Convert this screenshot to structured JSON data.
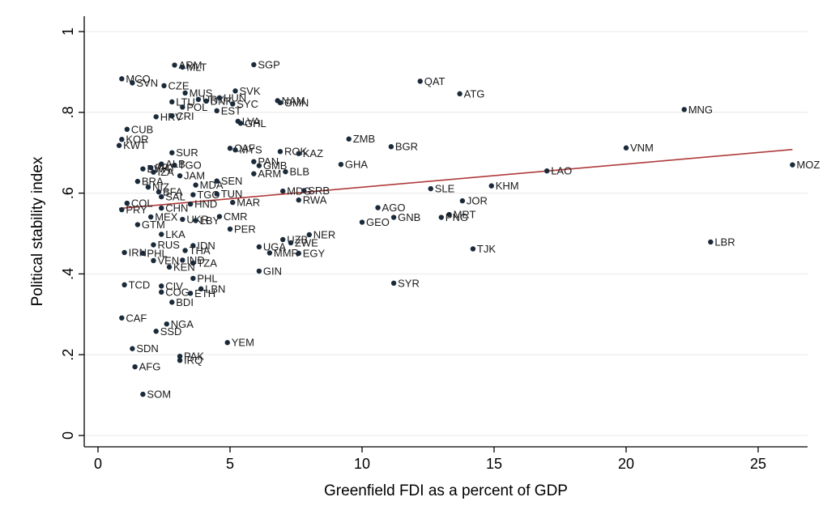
{
  "chart_data": {
    "type": "scatter",
    "xlabel": "Greenfield FDI as a percent of GDP",
    "ylabel": "Political stability index",
    "xlim": [
      0,
      26.5
    ],
    "ylim": [
      0,
      1
    ],
    "xticks": [
      0,
      5,
      10,
      15,
      20,
      25
    ],
    "yticks": [
      0,
      0.2,
      0.4,
      0.6,
      0.8,
      1
    ],
    "ytick_labels": [
      "0",
      ".2",
      ".4",
      ".6",
      ".8",
      "1"
    ],
    "grid": true,
    "legend": "none",
    "colors": {
      "point": "#1a2a3a",
      "fit_line": "#b03a3a",
      "grid": "#e8e8e8",
      "axis": "#000000"
    },
    "fit_line": {
      "x": [
        0.8,
        26.3
      ],
      "y": [
        0.562,
        0.708
      ]
    },
    "points": [
      {
        "label": "ARM",
        "x": 2.9,
        "y": 0.917
      },
      {
        "label": "MLT",
        "x": 3.2,
        "y": 0.912
      },
      {
        "label": "SGP",
        "x": 5.9,
        "y": 0.918
      },
      {
        "label": "MCO",
        "x": 0.9,
        "y": 0.883
      },
      {
        "label": "SVN",
        "x": 1.3,
        "y": 0.873
      },
      {
        "label": "CZE",
        "x": 2.5,
        "y": 0.866
      },
      {
        "label": "QAT",
        "x": 12.2,
        "y": 0.877
      },
      {
        "label": "ATG",
        "x": 13.7,
        "y": 0.846
      },
      {
        "label": "MUS",
        "x": 3.3,
        "y": 0.848
      },
      {
        "label": "SVK",
        "x": 5.2,
        "y": 0.853
      },
      {
        "label": "LTU",
        "x": 2.8,
        "y": 0.826
      },
      {
        "label": "URY",
        "x": 3.8,
        "y": 0.832
      },
      {
        "label": "DNK",
        "x": 4.1,
        "y": 0.828
      },
      {
        "label": "HUN",
        "x": 4.6,
        "y": 0.836
      },
      {
        "label": "NAM",
        "x": 6.8,
        "y": 0.829
      },
      {
        "label": "OMN",
        "x": 6.9,
        "y": 0.824
      },
      {
        "label": "POL",
        "x": 3.2,
        "y": 0.813
      },
      {
        "label": "SYC",
        "x": 5.1,
        "y": 0.821
      },
      {
        "label": "EST",
        "x": 4.5,
        "y": 0.804
      },
      {
        "label": "MNG",
        "x": 22.2,
        "y": 0.807
      },
      {
        "label": "HRV",
        "x": 2.2,
        "y": 0.789
      },
      {
        "label": "CRI",
        "x": 2.8,
        "y": 0.791
      },
      {
        "label": "LVA",
        "x": 5.3,
        "y": 0.778
      },
      {
        "label": "GHL",
        "x": 5.4,
        "y": 0.773
      },
      {
        "label": "CUB",
        "x": 1.1,
        "y": 0.758
      },
      {
        "label": "KOR",
        "x": 0.9,
        "y": 0.733
      },
      {
        "label": "ZMB",
        "x": 9.5,
        "y": 0.734
      },
      {
        "label": "KWT",
        "x": 0.8,
        "y": 0.718
      },
      {
        "label": "BGR",
        "x": 11.1,
        "y": 0.715
      },
      {
        "label": "VNM",
        "x": 20.0,
        "y": 0.712
      },
      {
        "label": "CAF",
        "x": 5.0,
        "y": 0.711
      },
      {
        "label": "MYS",
        "x": 5.2,
        "y": 0.707
      },
      {
        "label": "ROK",
        "x": 6.9,
        "y": 0.703
      },
      {
        "label": "KAZ",
        "x": 7.6,
        "y": 0.698
      },
      {
        "label": "SUR",
        "x": 2.8,
        "y": 0.7
      },
      {
        "label": "PAN",
        "x": 5.9,
        "y": 0.678
      },
      {
        "label": "GMB",
        "x": 6.1,
        "y": 0.668
      },
      {
        "label": "GHA",
        "x": 9.2,
        "y": 0.671
      },
      {
        "label": "MOZ",
        "x": 26.3,
        "y": 0.67
      },
      {
        "label": "ALB",
        "x": 2.4,
        "y": 0.672
      },
      {
        "label": "TGO",
        "x": 2.9,
        "y": 0.669
      },
      {
        "label": "BWA",
        "x": 1.7,
        "y": 0.66
      },
      {
        "label": "LAO",
        "x": 17.0,
        "y": 0.655
      },
      {
        "label": "ARM",
        "x": 5.9,
        "y": 0.648
      },
      {
        "label": "BLB",
        "x": 7.1,
        "y": 0.653
      },
      {
        "label": "PRT",
        "x": 2.0,
        "y": 0.663
      },
      {
        "label": "IZA",
        "x": 2.1,
        "y": 0.652
      },
      {
        "label": "JAM",
        "x": 3.1,
        "y": 0.643
      },
      {
        "label": "SEN",
        "x": 4.5,
        "y": 0.63
      },
      {
        "label": "BRA",
        "x": 1.5,
        "y": 0.629
      },
      {
        "label": "MDA",
        "x": 3.7,
        "y": 0.62
      },
      {
        "label": "KHM",
        "x": 14.9,
        "y": 0.618
      },
      {
        "label": "NIZ",
        "x": 1.9,
        "y": 0.615
      },
      {
        "label": "SLE",
        "x": 12.6,
        "y": 0.611
      },
      {
        "label": "BFA",
        "x": 2.3,
        "y": 0.603
      },
      {
        "label": "MDG",
        "x": 7.0,
        "y": 0.605
      },
      {
        "label": "SRB",
        "x": 7.8,
        "y": 0.606
      },
      {
        "label": "TGO",
        "x": 3.6,
        "y": 0.596
      },
      {
        "label": "TUN",
        "x": 4.5,
        "y": 0.598
      },
      {
        "label": "SAL",
        "x": 2.4,
        "y": 0.591
      },
      {
        "label": "MAR",
        "x": 5.1,
        "y": 0.577
      },
      {
        "label": "RWA",
        "x": 7.6,
        "y": 0.583
      },
      {
        "label": "JOR",
        "x": 13.8,
        "y": 0.581
      },
      {
        "label": "COL",
        "x": 1.1,
        "y": 0.575
      },
      {
        "label": "HND",
        "x": 3.5,
        "y": 0.573
      },
      {
        "label": "CHN",
        "x": 2.4,
        "y": 0.563
      },
      {
        "label": "AGO",
        "x": 10.6,
        "y": 0.564
      },
      {
        "label": "PRY",
        "x": 0.9,
        "y": 0.559
      },
      {
        "label": "MRT",
        "x": 13.3,
        "y": 0.547
      },
      {
        "label": "PNG",
        "x": 13.0,
        "y": 0.54
      },
      {
        "label": "GNB",
        "x": 11.2,
        "y": 0.54
      },
      {
        "label": "MEX",
        "x": 2.0,
        "y": 0.541
      },
      {
        "label": "CMR",
        "x": 4.6,
        "y": 0.542
      },
      {
        "label": "UKR",
        "x": 3.2,
        "y": 0.535
      },
      {
        "label": "LBY",
        "x": 3.7,
        "y": 0.532
      },
      {
        "label": "GEO",
        "x": 10.0,
        "y": 0.528
      },
      {
        "label": "GTM",
        "x": 1.5,
        "y": 0.522
      },
      {
        "label": "PER",
        "x": 5.0,
        "y": 0.511
      },
      {
        "label": "LKA",
        "x": 2.4,
        "y": 0.498
      },
      {
        "label": "NER",
        "x": 8.0,
        "y": 0.497
      },
      {
        "label": "UZB",
        "x": 7.0,
        "y": 0.485
      },
      {
        "label": "ZWE",
        "x": 7.3,
        "y": 0.477
      },
      {
        "label": "LBR",
        "x": 23.2,
        "y": 0.479
      },
      {
        "label": "RUS",
        "x": 2.1,
        "y": 0.472
      },
      {
        "label": "IDN",
        "x": 3.6,
        "y": 0.47
      },
      {
        "label": "UGA",
        "x": 6.1,
        "y": 0.467
      },
      {
        "label": "TJK",
        "x": 14.2,
        "y": 0.462
      },
      {
        "label": "THA",
        "x": 3.3,
        "y": 0.458
      },
      {
        "label": "IRN",
        "x": 1.0,
        "y": 0.453
      },
      {
        "label": "PHL",
        "x": 1.7,
        "y": 0.451
      },
      {
        "label": "MMR",
        "x": 6.5,
        "y": 0.452
      },
      {
        "label": "EGY",
        "x": 7.6,
        "y": 0.451
      },
      {
        "label": "IND",
        "x": 3.2,
        "y": 0.434
      },
      {
        "label": "VEN",
        "x": 2.1,
        "y": 0.433
      },
      {
        "label": "TZA",
        "x": 3.6,
        "y": 0.427
      },
      {
        "label": "KEN",
        "x": 2.7,
        "y": 0.417
      },
      {
        "label": "GIN",
        "x": 6.1,
        "y": 0.407
      },
      {
        "label": "PHL",
        "x": 3.6,
        "y": 0.389
      },
      {
        "label": "SYR",
        "x": 11.2,
        "y": 0.377
      },
      {
        "label": "TCD",
        "x": 1.0,
        "y": 0.373
      },
      {
        "label": "CIV",
        "x": 2.4,
        "y": 0.37
      },
      {
        "label": "LBN",
        "x": 3.9,
        "y": 0.363
      },
      {
        "label": "COG",
        "x": 2.4,
        "y": 0.355
      },
      {
        "label": "ETH",
        "x": 3.5,
        "y": 0.352
      },
      {
        "label": "BDI",
        "x": 2.8,
        "y": 0.33
      },
      {
        "label": "CAF",
        "x": 0.9,
        "y": 0.291
      },
      {
        "label": "NGA",
        "x": 2.6,
        "y": 0.276
      },
      {
        "label": "SSD",
        "x": 2.2,
        "y": 0.258
      },
      {
        "label": "YEM",
        "x": 4.9,
        "y": 0.23
      },
      {
        "label": "SDN",
        "x": 1.3,
        "y": 0.215
      },
      {
        "label": "PAK",
        "x": 3.1,
        "y": 0.196
      },
      {
        "label": "IRQ",
        "x": 3.1,
        "y": 0.186
      },
      {
        "label": "AFG",
        "x": 1.4,
        "y": 0.17
      },
      {
        "label": "SOM",
        "x": 1.7,
        "y": 0.102
      }
    ]
  }
}
